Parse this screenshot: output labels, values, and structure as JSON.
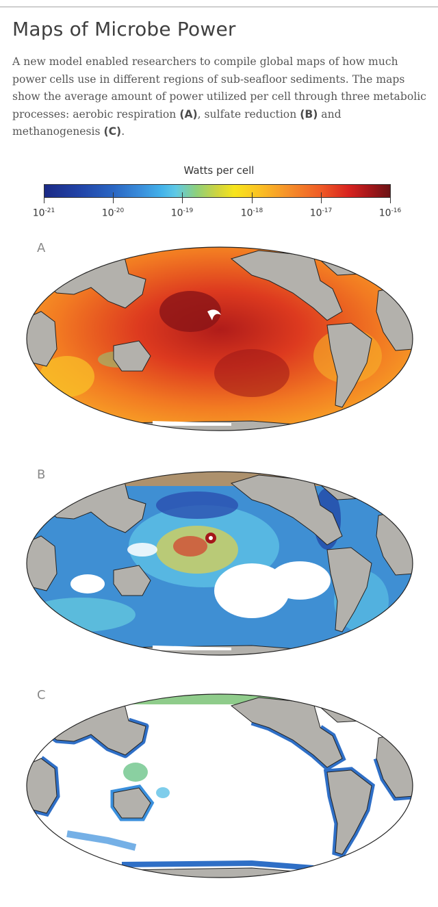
{
  "header": {
    "title": "Maps of Microbe Power",
    "description": {
      "p1": "A new model enabled researchers to compile global maps of how much power cells use in different regions of sub-seafloor sediments. The maps show the average amount of power utilized per cell through three metabolic processes: aerobic respiration ",
      "a": "(A)",
      "p2": ", sulfate reduction ",
      "b": "(B)",
      "p3": " and methanogenesis ",
      "c": "(C)",
      "p4": "."
    }
  },
  "colorbar": {
    "title": "Watts per cell",
    "base": "10",
    "exponents": [
      "-21",
      "-20",
      "-19",
      "-18",
      "-17",
      "-16"
    ],
    "colors": [
      "#1b2a86",
      "#2a66c3",
      "#43b3ea",
      "#8fd07a",
      "#f7e51c",
      "#f6932a",
      "#ef5a26",
      "#d8231f",
      "#6b1315"
    ]
  },
  "panels": [
    {
      "label": "A",
      "process": "aerobic respiration"
    },
    {
      "label": "B",
      "process": "sulfate reduction"
    },
    {
      "label": "C",
      "process": "methanogenesis"
    }
  ],
  "colors": {
    "land": "#b3b1ac",
    "ocean_empty": "#ffffff",
    "coast": "#222222"
  }
}
